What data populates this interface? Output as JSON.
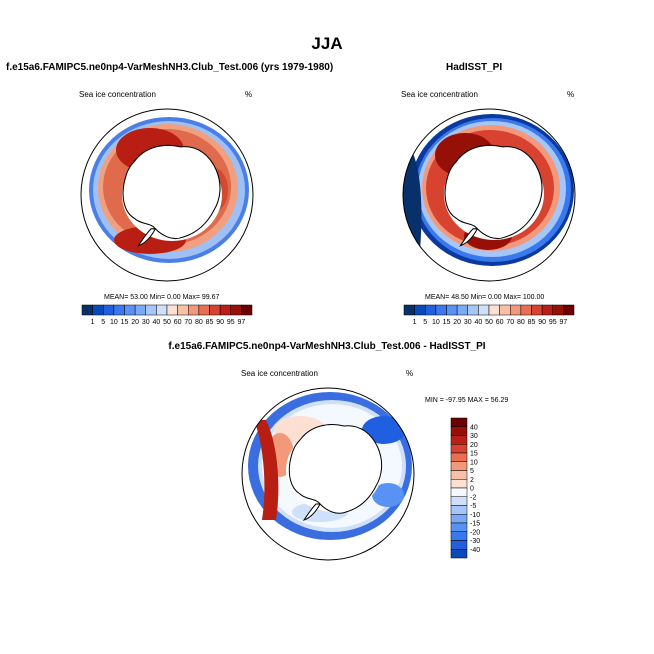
{
  "main_title": "JJA",
  "panels": [
    {
      "title": "f.e15a6.FAMIPC5.ne0np4-VarMeshNH3.Club_Test.006 (yrs 1979-1980)",
      "variable_label": "Sea ice concentration",
      "units": "%",
      "stats": "MEAN=  53.00  Min=   0.00  Max=  99.67"
    },
    {
      "title": "HadISST_PI",
      "variable_label": "Sea ice concentration",
      "units": "%",
      "stats": "MEAN=  48.50  Min=   0.00  Max= 100.00"
    },
    {
      "title": "f.e15a6.FAMIPC5.ne0np4-VarMeshNH3.Club_Test.006 - HadISST_PI",
      "variable_label": "Sea ice concentration",
      "units": "%",
      "stats": "MIN = -97.95 MAX =  56.29"
    }
  ],
  "chart_data": [
    {
      "type": "heatmap",
      "projection": "south polar stereographic",
      "title": "f.e15a6.FAMIPC5.ne0np4-VarMeshNH3.Club_Test.006 (yrs 1979-1980)",
      "variable": "Sea ice concentration",
      "units": "%",
      "mean": 53.0,
      "min": 0.0,
      "max": 99.67,
      "colorbar": {
        "orientation": "horizontal",
        "levels": [
          "1",
          "5",
          "10",
          "15",
          "20",
          "30",
          "40",
          "50",
          "60",
          "70",
          "80",
          "85",
          "90",
          "95",
          "97"
        ],
        "colors": [
          "#08306b",
          "#0a4ab8",
          "#2060e0",
          "#3a78ee",
          "#5a92f4",
          "#7aaaf6",
          "#a6c6f8",
          "#cfe0fb",
          "#fde0d2",
          "#f9c0a6",
          "#f3997b",
          "#ea6e52",
          "#d84230",
          "#bb1e15",
          "#961008",
          "#6b0000"
        ]
      }
    },
    {
      "type": "heatmap",
      "projection": "south polar stereographic",
      "title": "HadISST_PI",
      "variable": "Sea ice concentration",
      "units": "%",
      "mean": 48.5,
      "min": 0.0,
      "max": 100.0,
      "colorbar": {
        "orientation": "horizontal",
        "levels": [
          "1",
          "5",
          "10",
          "15",
          "20",
          "30",
          "40",
          "50",
          "60",
          "70",
          "80",
          "85",
          "90",
          "95",
          "97"
        ],
        "colors": [
          "#08306b",
          "#0a4ab8",
          "#2060e0",
          "#3a78ee",
          "#5a92f4",
          "#7aaaf6",
          "#a6c6f8",
          "#cfe0fb",
          "#fde0d2",
          "#f9c0a6",
          "#f3997b",
          "#ea6e52",
          "#d84230",
          "#bb1e15",
          "#961008",
          "#6b0000"
        ]
      }
    },
    {
      "type": "heatmap",
      "projection": "south polar stereographic",
      "title": "f.e15a6.FAMIPC5.ne0np4-VarMeshNH3.Club_Test.006 - HadISST_PI",
      "variable": "Sea ice concentration",
      "units": "%",
      "min": -97.95,
      "max": 56.29,
      "colorbar": {
        "orientation": "vertical",
        "levels": [
          "40",
          "30",
          "20",
          "15",
          "10",
          "5",
          "2",
          "0",
          "-2",
          "-5",
          "-10",
          "-15",
          "-20",
          "-30",
          "-40"
        ],
        "colors": [
          "#6b0000",
          "#961008",
          "#bb1e15",
          "#d84230",
          "#ea6e52",
          "#f3997b",
          "#f9c0a6",
          "#fde0d2",
          "#f5f8ff",
          "#cfe0fb",
          "#a6c6f8",
          "#7aaaf6",
          "#5a92f4",
          "#3a78ee",
          "#2060e0",
          "#0a4ab8"
        ]
      }
    }
  ]
}
